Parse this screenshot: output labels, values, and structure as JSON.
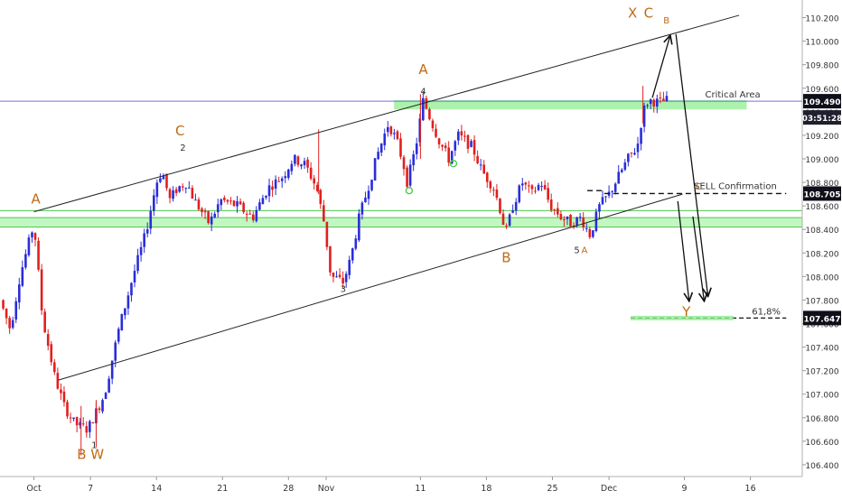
{
  "chart_data": {
    "type": "candlestick",
    "instrument_time_axis": {
      "tick_labels": [
        "Oct",
        "7",
        "14",
        "21",
        "28",
        "Nov",
        "11",
        "18",
        "25",
        "Dec",
        "9",
        "16"
      ],
      "tick_days": [
        1,
        7,
        14,
        21,
        28,
        32,
        42,
        49,
        56,
        62,
        70,
        77
      ],
      "range_days": [
        -2.6,
        82.5
      ]
    },
    "price_axis": {
      "tick_values": [
        106.4,
        106.6,
        106.8,
        107.0,
        107.2,
        107.4,
        107.6,
        107.8,
        108.0,
        108.2,
        108.4,
        108.6,
        108.8,
        109.0,
        109.2,
        109.4,
        109.6,
        109.8,
        110.0,
        110.2
      ],
      "decimals": 3,
      "ylim": [
        106.3,
        110.35
      ]
    },
    "path_points": [
      [
        -2.6,
        107.8
      ],
      [
        -1.5,
        107.55
      ],
      [
        -0.5,
        108.0
      ],
      [
        1,
        108.45
      ],
      [
        1.9,
        107.65
      ],
      [
        3.2,
        107.15
      ],
      [
        4.2,
        106.9
      ],
      [
        5.3,
        106.75
      ],
      [
        6.7,
        106.7
      ],
      [
        8.5,
        107.0
      ],
      [
        10,
        107.55
      ],
      [
        11.5,
        108.0
      ],
      [
        12.8,
        108.35
      ],
      [
        14,
        108.8
      ],
      [
        14.6,
        108.9
      ],
      [
        15.4,
        108.65
      ],
      [
        16.2,
        108.75
      ],
      [
        17.2,
        108.8
      ],
      [
        18,
        108.65
      ],
      [
        19.6,
        108.45
      ],
      [
        20.8,
        108.65
      ],
      [
        22.6,
        108.6
      ],
      [
        24.2,
        108.5
      ],
      [
        25.8,
        108.75
      ],
      [
        27.4,
        108.85
      ],
      [
        28.5,
        109.0
      ],
      [
        29.8,
        108.95
      ],
      [
        31,
        108.75
      ],
      [
        31.8,
        108.45
      ],
      [
        32.5,
        108.0
      ],
      [
        33.2,
        107.98
      ],
      [
        33.8,
        107.95
      ],
      [
        34.6,
        108.15
      ],
      [
        35.5,
        108.5
      ],
      [
        36.6,
        108.8
      ],
      [
        37.5,
        109.05
      ],
      [
        38.6,
        109.3
      ],
      [
        39.5,
        109.15
      ],
      [
        40.2,
        108.95
      ],
      [
        40.6,
        108.8
      ],
      [
        41.5,
        109.1
      ],
      [
        42.3,
        109.5
      ],
      [
        43,
        109.35
      ],
      [
        44,
        109.15
      ],
      [
        45,
        109.0
      ],
      [
        46,
        109.2
      ],
      [
        47.5,
        109.1
      ],
      [
        48.5,
        108.9
      ],
      [
        49.8,
        108.75
      ],
      [
        50.7,
        108.5
      ],
      [
        51,
        108.35
      ],
      [
        51.8,
        108.6
      ],
      [
        52.8,
        108.8
      ],
      [
        53.8,
        108.7
      ],
      [
        54.8,
        108.8
      ],
      [
        55.8,
        108.6
      ],
      [
        57,
        108.5
      ],
      [
        58,
        108.45
      ],
      [
        59,
        108.5
      ],
      [
        60,
        108.35
      ],
      [
        61,
        108.6
      ],
      [
        62,
        108.7
      ],
      [
        63,
        108.85
      ],
      [
        64,
        109.0
      ],
      [
        65,
        109.1
      ],
      [
        65.6,
        109.4
      ],
      [
        66.2,
        109.5
      ],
      [
        67.2,
        109.48
      ],
      [
        68.3,
        109.5
      ]
    ],
    "last_price": 109.49,
    "countdown": "03:51:28",
    "levels": [
      {
        "name": "critical_area",
        "price": 109.49,
        "label": "Critical Area"
      },
      {
        "name": "sell_confirmation",
        "price": 108.705,
        "label": "SELL Confirmation"
      },
      {
        "name": "fib_618",
        "price": 107.647,
        "label": "61,8%"
      }
    ],
    "support_zones": [
      {
        "from": 108.42,
        "to": 108.5
      },
      {
        "from": 109.42,
        "to": 109.5
      }
    ],
    "channel": {
      "upper": [
        [
          1,
          108.55
        ],
        [
          75.8,
          110.22
        ]
      ],
      "lower": [
        [
          3.6,
          107.12
        ],
        [
          69.8,
          108.7
        ]
      ]
    },
    "wave_labels": [
      {
        "text": "A",
        "day": 1.2,
        "price": 108.62,
        "color": "#c06a14",
        "size": "big"
      },
      {
        "text": "B W",
        "day": 7,
        "price": 106.45,
        "color": "#c06a14",
        "size": "big"
      },
      {
        "text": "1",
        "day": 7.4,
        "price": 106.54,
        "color": "#333333",
        "size": "small"
      },
      {
        "text": "C",
        "day": 16.5,
        "price": 109.2,
        "color": "#c06a14",
        "size": "big"
      },
      {
        "text": "2",
        "day": 16.8,
        "price": 109.07,
        "color": "#333333",
        "size": "small"
      },
      {
        "text": "3",
        "day": 33.8,
        "price": 107.87,
        "color": "#333333",
        "size": "small"
      },
      {
        "text": "A",
        "day": 42.3,
        "price": 109.72,
        "color": "#c06a14",
        "size": "big"
      },
      {
        "text": "4",
        "day": 42.3,
        "price": 109.55,
        "color": "#333333",
        "size": "small"
      },
      {
        "text": "B",
        "day": 51.1,
        "price": 108.12,
        "color": "#c06a14",
        "size": "big"
      },
      {
        "text": "5",
        "day": 58.6,
        "price": 108.2,
        "color": "#333333",
        "size": "small"
      },
      {
        "text": "A",
        "day": 59.4,
        "price": 108.2,
        "color": "#c06a14",
        "size": "small"
      },
      {
        "text": "X",
        "day": 64.5,
        "price": 110.2,
        "color": "#c06a14",
        "size": "big"
      },
      {
        "text": "C",
        "day": 66.2,
        "price": 110.2,
        "color": "#c06a14",
        "size": "big"
      },
      {
        "text": "B",
        "day": 68.1,
        "price": 110.15,
        "color": "#c06a14",
        "size": "small"
      },
      {
        "text": "C",
        "day": 71.5,
        "price": 108.74,
        "color": "#c06a14",
        "size": "small"
      },
      {
        "text": "Y",
        "day": 70.2,
        "price": 107.66,
        "color": "#c06a14",
        "size": "big"
      }
    ],
    "circle_markers": [
      {
        "day": 40.8,
        "price": 108.73
      },
      {
        "day": 45.5,
        "price": 108.96
      }
    ],
    "projection_arrows": [
      {
        "from": [
          66.6,
          109.52
        ],
        "to": [
          68.5,
          110.05
        ]
      },
      {
        "from": [
          69.1,
          110.06
        ],
        "to": [
          72.5,
          107.83
        ]
      },
      {
        "from": [
          69.3,
          108.64
        ],
        "to": [
          70.5,
          107.79
        ]
      },
      {
        "from": [
          70.9,
          108.51
        ],
        "to": [
          72.1,
          107.79
        ]
      }
    ],
    "dashed_lines": [
      {
        "from": [
          59.7,
          108.73
        ],
        "to": [
          61.5,
          108.73
        ]
      },
      {
        "from": [
          61.5,
          108.705
        ],
        "to": [
          80.8,
          108.705
        ]
      },
      {
        "from": [
          64.3,
          107.647
        ],
        "to": [
          80.8,
          107.647
        ]
      }
    ]
  },
  "colors": {
    "up": "#2a2dd8",
    "down": "#e0201e",
    "zone": "#90ee90",
    "axis_text": "#333333",
    "price_tag_bg": "#0f0f1a"
  }
}
